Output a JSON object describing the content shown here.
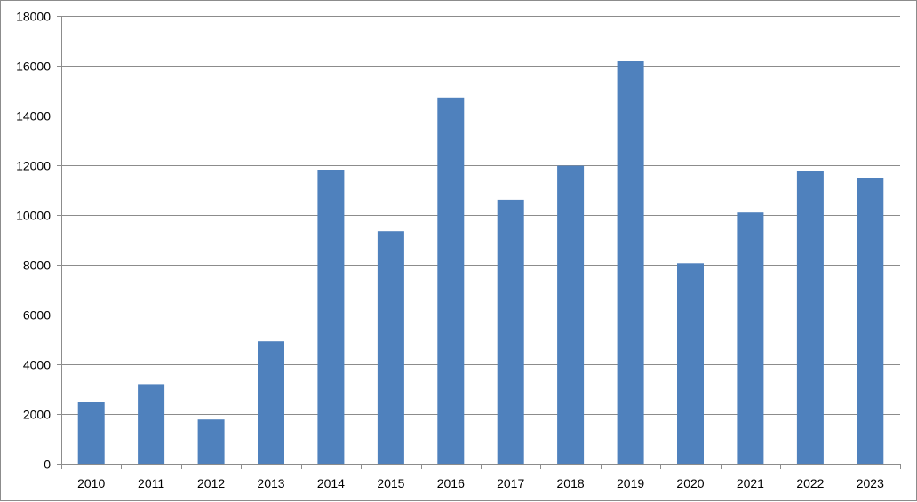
{
  "chart_data": {
    "type": "bar",
    "title": "",
    "xlabel": "",
    "ylabel": "",
    "categories": [
      "2010",
      "2011",
      "2012",
      "2013",
      "2014",
      "2015",
      "2016",
      "2017",
      "2018",
      "2019",
      "2020",
      "2021",
      "2022",
      "2023"
    ],
    "values": [
      2500,
      3200,
      1780,
      4920,
      11820,
      9350,
      14720,
      10610,
      11980,
      16180,
      8060,
      10100,
      11780,
      11500
    ],
    "ylim": [
      0,
      18000
    ],
    "yticks": [
      0,
      2000,
      4000,
      6000,
      8000,
      10000,
      12000,
      14000,
      16000,
      18000
    ],
    "grid": "horizontal",
    "legend": "none",
    "bar_color": "#4f81bd"
  }
}
